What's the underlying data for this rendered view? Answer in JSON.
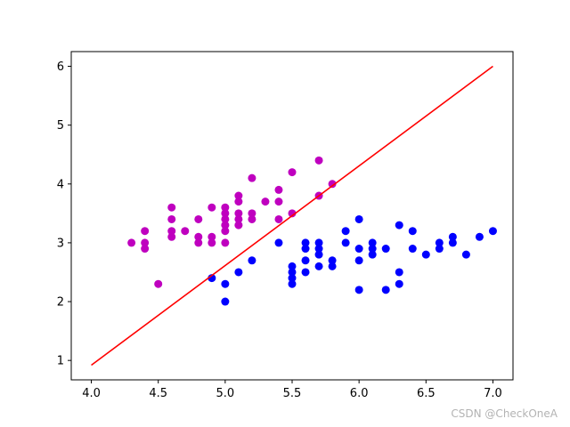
{
  "chart_data": {
    "type": "scatter",
    "xlim": [
      3.85,
      7.15
    ],
    "ylim": [
      0.67,
      6.25
    ],
    "x_ticks": [
      4.0,
      4.5,
      5.0,
      5.5,
      6.0,
      6.5,
      7.0
    ],
    "x_tick_labels": [
      "4.0",
      "4.5",
      "5.0",
      "5.5",
      "6.0",
      "6.5",
      "7.0"
    ],
    "y_ticks": [
      1,
      2,
      3,
      4,
      5,
      6
    ],
    "y_tick_labels": [
      "1",
      "2",
      "3",
      "4",
      "5",
      "6"
    ],
    "grid": false,
    "series": [
      {
        "color": "#bf00bf",
        "points": [
          [
            4.3,
            3.0
          ],
          [
            4.4,
            2.9
          ],
          [
            4.4,
            3.0
          ],
          [
            4.4,
            3.2
          ],
          [
            4.5,
            2.3
          ],
          [
            4.6,
            3.1
          ],
          [
            4.6,
            3.2
          ],
          [
            4.6,
            3.4
          ],
          [
            4.6,
            3.6
          ],
          [
            4.7,
            3.2
          ],
          [
            4.8,
            3.0
          ],
          [
            4.8,
            3.1
          ],
          [
            4.8,
            3.4
          ],
          [
            4.9,
            3.0
          ],
          [
            4.9,
            3.1
          ],
          [
            4.9,
            3.6
          ],
          [
            5.0,
            3.0
          ],
          [
            5.0,
            3.2
          ],
          [
            5.0,
            3.3
          ],
          [
            5.0,
            3.4
          ],
          [
            5.0,
            3.5
          ],
          [
            5.0,
            3.6
          ],
          [
            5.1,
            3.3
          ],
          [
            5.1,
            3.4
          ],
          [
            5.1,
            3.5
          ],
          [
            5.1,
            3.7
          ],
          [
            5.1,
            3.8
          ],
          [
            5.2,
            3.4
          ],
          [
            5.2,
            3.5
          ],
          [
            5.2,
            4.1
          ],
          [
            5.3,
            3.7
          ],
          [
            5.4,
            3.4
          ],
          [
            5.4,
            3.7
          ],
          [
            5.4,
            3.9
          ],
          [
            5.5,
            3.5
          ],
          [
            5.5,
            4.2
          ],
          [
            5.7,
            3.8
          ],
          [
            5.7,
            4.4
          ],
          [
            5.8,
            4.0
          ]
        ]
      },
      {
        "color": "#0000ff",
        "points": [
          [
            4.9,
            2.4
          ],
          [
            5.0,
            2.0
          ],
          [
            5.0,
            2.3
          ],
          [
            5.1,
            2.5
          ],
          [
            5.2,
            2.7
          ],
          [
            5.4,
            3.0
          ],
          [
            5.5,
            2.3
          ],
          [
            5.5,
            2.4
          ],
          [
            5.5,
            2.5
          ],
          [
            5.5,
            2.6
          ],
          [
            5.6,
            2.5
          ],
          [
            5.6,
            2.7
          ],
          [
            5.6,
            2.9
          ],
          [
            5.6,
            3.0
          ],
          [
            5.7,
            2.6
          ],
          [
            5.7,
            2.8
          ],
          [
            5.7,
            2.9
          ],
          [
            5.7,
            3.0
          ],
          [
            5.8,
            2.6
          ],
          [
            5.8,
            2.7
          ],
          [
            5.9,
            3.0
          ],
          [
            5.9,
            3.2
          ],
          [
            6.0,
            2.2
          ],
          [
            6.0,
            2.7
          ],
          [
            6.0,
            2.9
          ],
          [
            6.0,
            3.4
          ],
          [
            6.1,
            2.8
          ],
          [
            6.1,
            2.9
          ],
          [
            6.1,
            3.0
          ],
          [
            6.2,
            2.2
          ],
          [
            6.2,
            2.9
          ],
          [
            6.3,
            2.3
          ],
          [
            6.3,
            2.5
          ],
          [
            6.3,
            3.3
          ],
          [
            6.4,
            2.9
          ],
          [
            6.4,
            3.2
          ],
          [
            6.5,
            2.8
          ],
          [
            6.6,
            2.9
          ],
          [
            6.6,
            3.0
          ],
          [
            6.7,
            3.0
          ],
          [
            6.7,
            3.1
          ],
          [
            6.8,
            2.8
          ],
          [
            6.9,
            3.1
          ],
          [
            7.0,
            3.2
          ]
        ]
      }
    ],
    "line": {
      "color": "#ff0000",
      "points": [
        [
          4.0,
          0.92
        ],
        [
          7.0,
          6.0
        ]
      ]
    }
  },
  "watermark": "CSDN @CheckOneA"
}
